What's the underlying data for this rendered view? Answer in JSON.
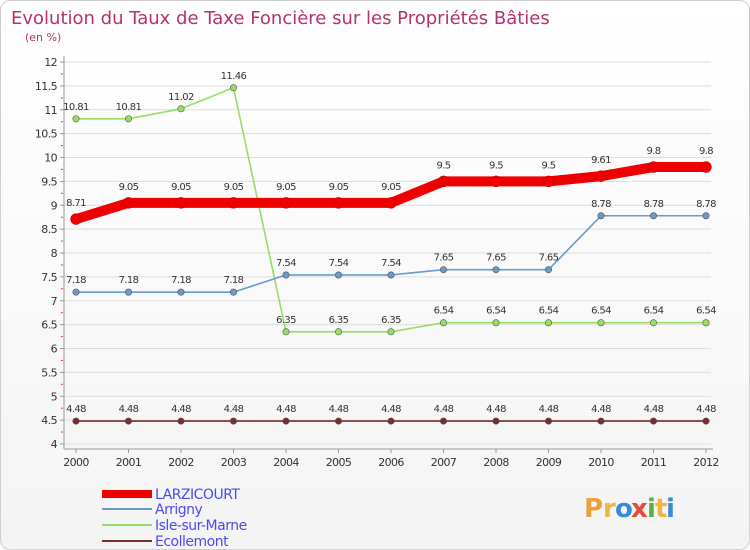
{
  "chart_data": {
    "type": "line",
    "title": "Evolution du Taux de Taxe Foncière sur les Propriétés Bâties",
    "subtitle": "(en %)",
    "x": [
      "2000",
      "2001",
      "2002",
      "2003",
      "2004",
      "2005",
      "2006",
      "2007",
      "2008",
      "2009",
      "2010",
      "2011",
      "2012"
    ],
    "y_ticks": [
      "4",
      "4.5",
      "5",
      "5.5",
      "6",
      "6.5",
      "7",
      "7.5",
      "8",
      "8.5",
      "9",
      "9.5",
      "10",
      "10.5",
      "11",
      "11.5",
      "12"
    ],
    "ylim": [
      4,
      12
    ],
    "series": [
      {
        "name": "LARZICOURT",
        "color": "#ee0000",
        "values": [
          8.71,
          9.05,
          9.05,
          9.05,
          9.05,
          9.05,
          9.05,
          9.5,
          9.5,
          9.5,
          9.61,
          9.8,
          9.8
        ],
        "labels": [
          "8.71",
          "9.05",
          "9.05",
          "9.05",
          "9.05",
          "9.05",
          "9.05",
          "9.5",
          "9.5",
          "9.5",
          "9.61",
          "9.8",
          "9.8"
        ]
      },
      {
        "name": "Arrigny",
        "color": "#6a9bcb",
        "values": [
          7.18,
          7.18,
          7.18,
          7.18,
          7.54,
          7.54,
          7.54,
          7.65,
          7.65,
          7.65,
          8.78,
          8.78,
          8.78
        ],
        "labels": [
          "7.18",
          "7.18",
          "7.18",
          "7.18",
          "7.54",
          "7.54",
          "7.54",
          "7.65",
          "7.65",
          "7.65",
          "8.78",
          "8.78",
          "8.78"
        ]
      },
      {
        "name": "Isle-sur-Marne",
        "color": "#99dd66",
        "values": [
          10.81,
          10.81,
          11.02,
          11.46,
          6.35,
          6.35,
          6.35,
          6.54,
          6.54,
          6.54,
          6.54,
          6.54,
          6.54
        ],
        "labels": [
          "10.81",
          "10.81",
          "11.02",
          "11.46",
          "6.35",
          "6.35",
          "6.35",
          "6.54",
          "6.54",
          "6.54",
          "6.54",
          "6.54",
          "6.54"
        ]
      },
      {
        "name": "Ecollemont",
        "color": "#7a2e2e",
        "values": [
          4.48,
          4.48,
          4.48,
          4.48,
          4.48,
          4.48,
          4.48,
          4.48,
          4.48,
          4.48,
          4.48,
          4.48,
          4.48
        ],
        "labels": [
          "4.48",
          "4.48",
          "4.48",
          "4.48",
          "4.48",
          "4.48",
          "4.48",
          "4.48",
          "4.48",
          "4.48",
          "4.48",
          "4.48",
          "4.48"
        ]
      }
    ],
    "legend_position": "bottom-left"
  },
  "logo": {
    "text": "Proxiti",
    "letters": [
      "P",
      "r",
      "o",
      "x",
      "i",
      "t",
      "i"
    ]
  }
}
